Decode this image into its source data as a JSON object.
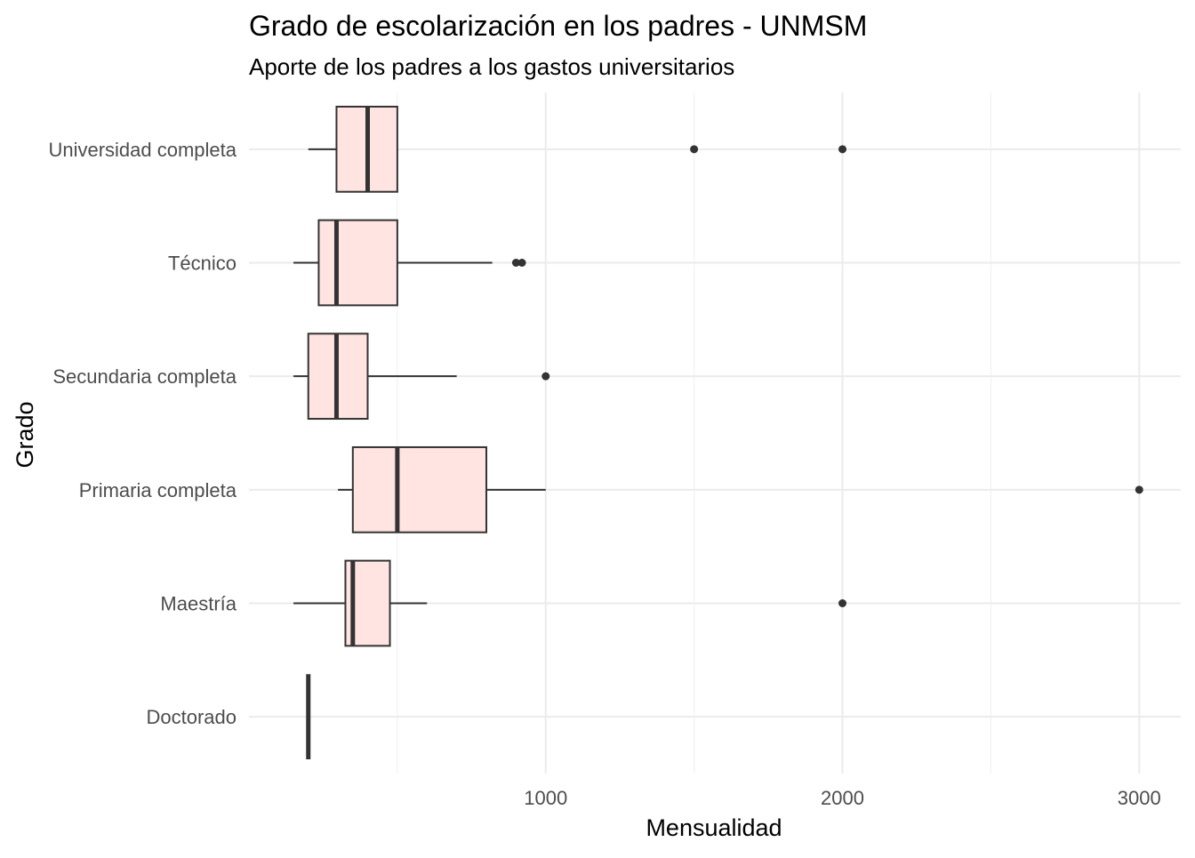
{
  "chart_data": {
    "type": "boxplot",
    "orientation": "horizontal",
    "title": "Grado de escolarización en los padres - UNMSM",
    "subtitle": "Aporte de los padres a los gastos universitarios",
    "xlabel": "Mensualidad",
    "ylabel": "Grado",
    "xlim": [
      0,
      3140
    ],
    "x_ticks": [
      1000,
      2000,
      3000
    ],
    "x_tick_labels": [
      "1000",
      "2000",
      "3000"
    ],
    "grid": true,
    "legend": "none",
    "colors": {
      "box_fill": "#ffe4e1",
      "box_stroke": "#333333",
      "grid_major": "#ebebeb",
      "grid_minor": "#f3f3f3"
    },
    "categories": [
      "Universidad completa",
      "Técnico",
      "Secundaria completa",
      "Primaria completa",
      "Maestría",
      "Doctorado"
    ],
    "boxes": [
      {
        "category": "Universidad completa",
        "lower_whisker": 200,
        "q1": 295,
        "median": 400,
        "q3": 500,
        "upper_whisker": 500,
        "outliers": [
          1500,
          2000
        ]
      },
      {
        "category": "Técnico",
        "lower_whisker": 150,
        "q1": 235,
        "median": 295,
        "q3": 500,
        "upper_whisker": 820,
        "outliers": [
          900,
          920
        ]
      },
      {
        "category": "Secundaria completa",
        "lower_whisker": 150,
        "q1": 200,
        "median": 295,
        "q3": 400,
        "upper_whisker": 700,
        "outliers": [
          1000
        ]
      },
      {
        "category": "Primaria completa",
        "lower_whisker": 300,
        "q1": 350,
        "median": 500,
        "q3": 800,
        "upper_whisker": 1000,
        "outliers": [
          3000
        ]
      },
      {
        "category": "Maestría",
        "lower_whisker": 150,
        "q1": 325,
        "median": 350,
        "q3": 475,
        "upper_whisker": 600,
        "outliers": [
          2000
        ]
      },
      {
        "category": "Doctorado",
        "lower_whisker": 200,
        "q1": 200,
        "median": 200,
        "q3": 200,
        "upper_whisker": 200,
        "outliers": []
      }
    ]
  }
}
